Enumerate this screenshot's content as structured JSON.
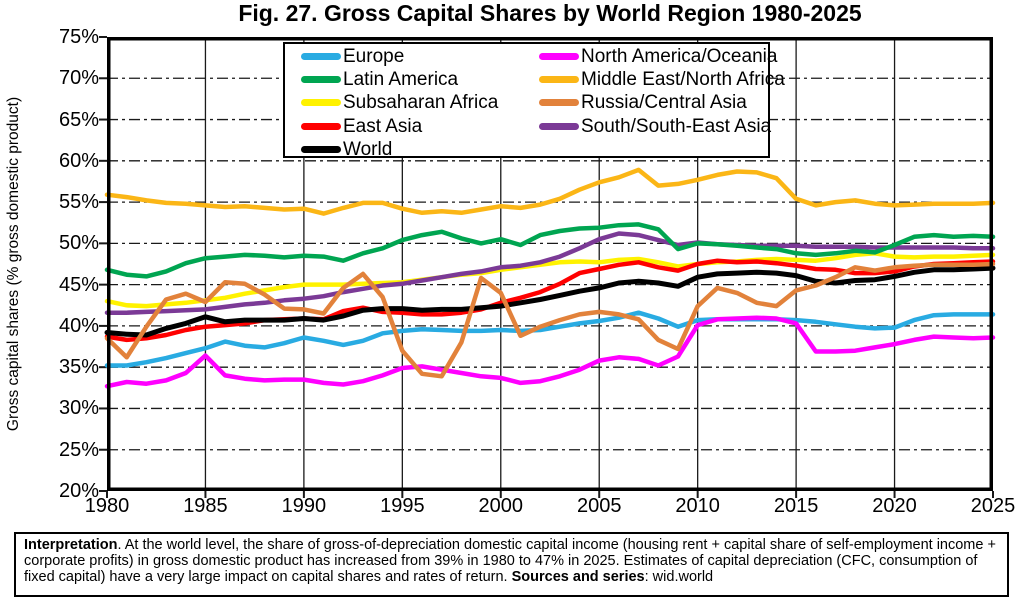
{
  "title": "Fig. 27. Gross Capital Shares by World Region 1980-2025",
  "y_axis": {
    "label": "Gross capital shares (% gross domestic product)",
    "tick_labels": [
      "75%",
      "70%",
      "65%",
      "60%",
      "55%",
      "50%",
      "45%",
      "40%",
      "35%",
      "30%",
      "25%",
      "20%"
    ],
    "tick_values": [
      75,
      70,
      65,
      60,
      55,
      50,
      45,
      40,
      35,
      30,
      25,
      20
    ]
  },
  "x_axis": {
    "tick_labels": [
      "1980",
      "1985",
      "1990",
      "1995",
      "2000",
      "2005",
      "2010",
      "2015",
      "2020",
      "2025"
    ],
    "tick_values": [
      1980,
      1985,
      1990,
      1995,
      2000,
      2005,
      2010,
      2015,
      2020,
      2025
    ]
  },
  "legend": {
    "left_column": [
      0,
      1,
      2,
      3,
      4
    ],
    "right_column": [
      5,
      6,
      7,
      8
    ]
  },
  "interpretation": {
    "heading": "Interpretation",
    "body": ". At the world level, the share of gross-of-depreciation domestic capital income (housing rent + capital share of self-employment income + corporate profits) in gross domestic product has increased from 39% in 1980 to 47% in 2025. Estimates of capital depreciation (CFC, consumption of fixed capital) have a very large impact on capital shares and rates of return. ",
    "sources_label": "Sources and series",
    "sources_value": ": wid.world"
  },
  "chart_data": {
    "type": "line",
    "xlabel": "",
    "ylabel": "Gross capital shares (% gross domestic product)",
    "xlim": [
      1980,
      2025
    ],
    "ylim": [
      20,
      75
    ],
    "x_step": 1,
    "grid": {
      "horizontal": "dashed",
      "vertical": "solid"
    },
    "legend_position": "top-inside",
    "draw_order": [
      0,
      5,
      2,
      8,
      1,
      3,
      4,
      6,
      7
    ],
    "x": [
      1980,
      1981,
      1982,
      1983,
      1984,
      1985,
      1986,
      1987,
      1988,
      1989,
      1990,
      1991,
      1992,
      1993,
      1994,
      1995,
      1996,
      1997,
      1998,
      1999,
      2000,
      2001,
      2002,
      2003,
      2004,
      2005,
      2006,
      2007,
      2008,
      2009,
      2010,
      2011,
      2012,
      2013,
      2014,
      2015,
      2016,
      2017,
      2018,
      2019,
      2020,
      2021,
      2022,
      2023,
      2024,
      2025
    ],
    "series": [
      {
        "name": "Europe",
        "color": "#29ABE2",
        "width": 4.5,
        "values": [
          35.2,
          35.2,
          35.6,
          36.1,
          36.7,
          37.3,
          38.1,
          37.6,
          37.4,
          37.9,
          38.6,
          38.2,
          37.7,
          38.2,
          39.1,
          39.4,
          39.6,
          39.5,
          39.4,
          39.4,
          39.5,
          39.4,
          39.5,
          39.9,
          40.3,
          40.6,
          41.0,
          41.6,
          40.9,
          39.9,
          40.7,
          40.8,
          40.8,
          40.8,
          40.8,
          40.7,
          40.5,
          40.2,
          39.9,
          39.7,
          39.8,
          40.7,
          41.3,
          41.4,
          41.4,
          41.4
        ]
      },
      {
        "name": "Latin America",
        "color": "#00A551",
        "width": 4.5,
        "values": [
          46.8,
          46.2,
          46.0,
          46.6,
          47.6,
          48.2,
          48.4,
          48.6,
          48.5,
          48.3,
          48.5,
          48.4,
          47.9,
          48.8,
          49.4,
          50.4,
          51.0,
          51.4,
          50.6,
          50.0,
          50.5,
          49.8,
          51.0,
          51.5,
          51.8,
          51.9,
          52.2,
          52.3,
          51.7,
          49.3,
          50.0,
          49.9,
          49.7,
          49.5,
          49.3,
          48.8,
          48.6,
          48.8,
          49.1,
          48.9,
          49.8,
          50.8,
          51.0,
          50.8,
          50.9,
          50.8
        ]
      },
      {
        "name": "Subsaharan Africa",
        "color": "#FFF200",
        "width": 4.5,
        "values": [
          43.0,
          42.5,
          42.4,
          42.6,
          42.8,
          43.1,
          43.4,
          43.9,
          44.3,
          44.7,
          45.0,
          45.0,
          45.0,
          45.1,
          45.2,
          45.3,
          45.6,
          45.9,
          46.2,
          46.4,
          46.8,
          47.1,
          47.4,
          47.7,
          47.8,
          47.7,
          48.0,
          48.1,
          47.7,
          47.2,
          47.5,
          47.7,
          47.8,
          48.0,
          48.1,
          48.0,
          47.9,
          48.2,
          48.6,
          48.8,
          48.4,
          48.3,
          48.4,
          48.4,
          48.5,
          48.6
        ]
      },
      {
        "name": "East Asia",
        "color": "#FF0000",
        "width": 4.5,
        "values": [
          38.7,
          38.3,
          38.5,
          38.9,
          39.5,
          39.9,
          40.1,
          40.3,
          40.7,
          40.8,
          40.9,
          40.8,
          41.8,
          42.2,
          41.7,
          41.6,
          41.4,
          41.4,
          41.6,
          42.0,
          42.8,
          43.4,
          44.1,
          45.1,
          46.4,
          46.9,
          47.4,
          47.7,
          47.1,
          46.7,
          47.5,
          47.9,
          47.7,
          47.8,
          47.6,
          47.3,
          46.9,
          46.8,
          46.4,
          46.4,
          46.6,
          47.2,
          47.5,
          47.6,
          47.7,
          47.8
        ]
      },
      {
        "name": "World",
        "color": "#000000",
        "width": 5,
        "values": [
          39.2,
          39.0,
          38.9,
          39.7,
          40.3,
          41.1,
          40.5,
          40.7,
          40.7,
          40.7,
          40.9,
          40.7,
          41.2,
          41.9,
          42.1,
          42.1,
          41.9,
          42.0,
          42.0,
          42.2,
          42.4,
          42.8,
          43.2,
          43.7,
          44.2,
          44.6,
          45.2,
          45.4,
          45.2,
          44.8,
          45.9,
          46.3,
          46.4,
          46.5,
          46.4,
          46.1,
          45.4,
          45.2,
          45.5,
          45.6,
          46.0,
          46.5,
          46.8,
          46.8,
          46.9,
          47.0
        ]
      },
      {
        "name": "North America/Oceania",
        "color": "#FF00FF",
        "width": 4.5,
        "values": [
          32.7,
          33.2,
          33.0,
          33.4,
          34.3,
          36.4,
          34.0,
          33.6,
          33.4,
          33.5,
          33.5,
          33.1,
          32.9,
          33.3,
          34.0,
          34.9,
          35.1,
          34.7,
          34.3,
          33.9,
          33.7,
          33.1,
          33.3,
          33.9,
          34.7,
          35.8,
          36.2,
          36.0,
          35.2,
          36.3,
          40.1,
          40.8,
          40.9,
          41.0,
          40.9,
          40.3,
          36.9,
          36.9,
          37.0,
          37.4,
          37.8,
          38.3,
          38.7,
          38.6,
          38.5,
          38.6
        ]
      },
      {
        "name": "Middle East/North Africa",
        "color": "#FBB616",
        "width": 4.5,
        "values": [
          55.9,
          55.6,
          55.2,
          54.9,
          54.8,
          54.6,
          54.4,
          54.5,
          54.3,
          54.1,
          54.2,
          53.6,
          54.3,
          54.9,
          54.9,
          54.2,
          53.7,
          53.9,
          53.7,
          54.1,
          54.5,
          54.3,
          54.7,
          55.4,
          56.5,
          57.4,
          58.0,
          58.9,
          57.0,
          57.2,
          57.7,
          58.3,
          58.7,
          58.6,
          57.9,
          55.4,
          54.6,
          55.0,
          55.2,
          54.8,
          54.6,
          54.7,
          54.8,
          54.8,
          54.8,
          54.9
        ]
      },
      {
        "name": "Russia/Central Asia",
        "color": "#E2823B",
        "width": 4.5,
        "values": [
          38.5,
          36.2,
          39.9,
          43.2,
          43.9,
          42.9,
          45.3,
          45.1,
          43.8,
          42.1,
          42.0,
          41.5,
          44.6,
          46.3,
          43.5,
          37.0,
          34.2,
          33.9,
          38.0,
          45.8,
          44.0,
          38.8,
          39.9,
          40.7,
          41.4,
          41.7,
          41.4,
          40.8,
          38.3,
          37.2,
          42.4,
          44.6,
          44.0,
          42.8,
          42.4,
          44.3,
          44.9,
          45.9,
          47.1,
          46.7,
          47.1,
          47.3,
          47.4,
          47.4,
          47.4,
          47.5
        ]
      },
      {
        "name": "South/South-East Asia",
        "color": "#7B3A96",
        "width": 4.5,
        "values": [
          41.6,
          41.6,
          41.7,
          41.8,
          41.9,
          42.0,
          42.3,
          42.6,
          42.8,
          43.1,
          43.3,
          43.6,
          44.1,
          44.5,
          44.9,
          45.1,
          45.5,
          45.9,
          46.3,
          46.6,
          47.1,
          47.3,
          47.7,
          48.4,
          49.4,
          50.5,
          51.2,
          51.0,
          50.4,
          49.8,
          50.1,
          49.9,
          49.8,
          49.7,
          49.7,
          49.7,
          49.6,
          49.6,
          49.6,
          49.5,
          49.5,
          49.5,
          49.5,
          49.5,
          49.4,
          49.4
        ]
      }
    ]
  }
}
